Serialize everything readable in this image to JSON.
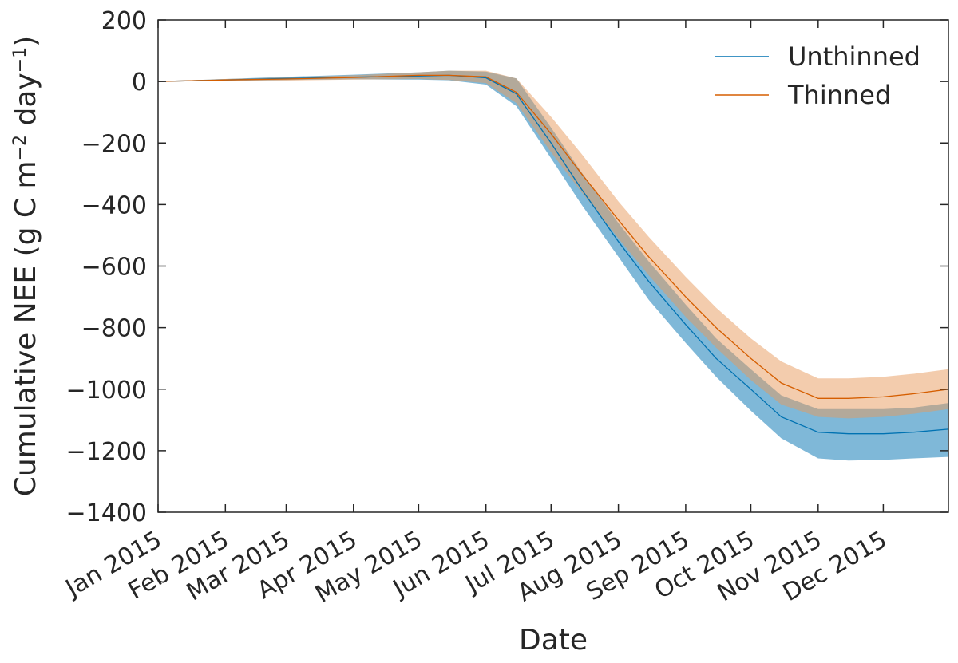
{
  "chart_data": {
    "type": "line",
    "xlabel": "Date",
    "ylabel": "Cumulative NEE (g C m",
    "ylabel_sup1": "−2",
    "ylabel_mid": " day",
    "ylabel_sup2": "−1",
    "ylabel_end": ")",
    "ylim": [
      -1400,
      200
    ],
    "yticks": [
      200,
      0,
      -200,
      -400,
      -600,
      -800,
      -1000,
      -1200,
      -1400
    ],
    "ytick_labels": [
      "200",
      "0",
      "−200",
      "−400",
      "−600",
      "−800",
      "−1000",
      "−1200",
      "−1400"
    ],
    "xlim": [
      "2015-01-01",
      "2015-12-31"
    ],
    "xticks": [
      "2015-01-01",
      "2015-02-01",
      "2015-03-01",
      "2015-04-01",
      "2015-05-01",
      "2015-06-01",
      "2015-07-01",
      "2015-08-01",
      "2015-09-01",
      "2015-10-01",
      "2015-11-01",
      "2015-12-01"
    ],
    "xtick_labels": [
      "Jan 2015",
      "Feb 2015",
      "Mar 2015",
      "Apr 2015",
      "May 2015",
      "Jun 2015",
      "Jul 2015",
      "Aug 2015",
      "Sep 2015",
      "Oct 2015",
      "Nov 2015",
      "Dec 2015"
    ],
    "grid": false,
    "legend_position": "top-right",
    "series": [
      {
        "name": "Unthinned",
        "color": "#0072b2",
        "band_color": "#0072b2",
        "x": [
          "2015-01-01",
          "2015-02-01",
          "2015-03-01",
          "2015-04-01",
          "2015-05-01",
          "2015-05-15",
          "2015-06-01",
          "2015-06-15",
          "2015-07-01",
          "2015-07-15",
          "2015-08-01",
          "2015-08-15",
          "2015-09-01",
          "2015-09-15",
          "2015-10-01",
          "2015-10-15",
          "2015-11-01",
          "2015-11-15",
          "2015-12-01",
          "2015-12-15",
          "2015-12-31"
        ],
        "y": [
          0,
          5,
          10,
          14,
          18,
          20,
          12,
          -40,
          -200,
          -350,
          -520,
          -650,
          -790,
          -900,
          -1000,
          -1090,
          -1140,
          -1145,
          -1145,
          -1140,
          -1130
        ],
        "lower": [
          0,
          2,
          5,
          7,
          6,
          4,
          -10,
          -80,
          -250,
          -400,
          -570,
          -710,
          -850,
          -960,
          -1070,
          -1160,
          -1225,
          -1232,
          -1230,
          -1225,
          -1220
        ],
        "upper": [
          0,
          8,
          15,
          22,
          30,
          35,
          32,
          10,
          -150,
          -295,
          -460,
          -585,
          -725,
          -835,
          -935,
          -1020,
          -1065,
          -1065,
          -1065,
          -1060,
          -1045
        ]
      },
      {
        "name": "Thinned",
        "color": "#d55e00",
        "band_color": "#e89a5c",
        "x": [
          "2015-01-01",
          "2015-02-01",
          "2015-03-01",
          "2015-04-01",
          "2015-05-01",
          "2015-05-15",
          "2015-06-01",
          "2015-06-15",
          "2015-07-01",
          "2015-07-15",
          "2015-08-01",
          "2015-08-15",
          "2015-09-01",
          "2015-09-15",
          "2015-10-01",
          "2015-10-15",
          "2015-11-01",
          "2015-11-15",
          "2015-12-01",
          "2015-12-15",
          "2015-12-31"
        ],
        "y": [
          0,
          5,
          8,
          13,
          20,
          20,
          15,
          -35,
          -170,
          -300,
          -450,
          -570,
          -700,
          -800,
          -900,
          -980,
          -1030,
          -1030,
          -1025,
          -1015,
          -1000
        ],
        "lower": [
          0,
          2,
          3,
          6,
          8,
          5,
          -5,
          -70,
          -230,
          -360,
          -510,
          -630,
          -765,
          -865,
          -970,
          -1050,
          -1090,
          -1095,
          -1090,
          -1080,
          -1065
        ],
        "upper": [
          0,
          8,
          13,
          20,
          30,
          35,
          35,
          10,
          -115,
          -235,
          -390,
          -505,
          -635,
          -735,
          -835,
          -910,
          -965,
          -965,
          -960,
          -950,
          -935
        ]
      }
    ]
  }
}
